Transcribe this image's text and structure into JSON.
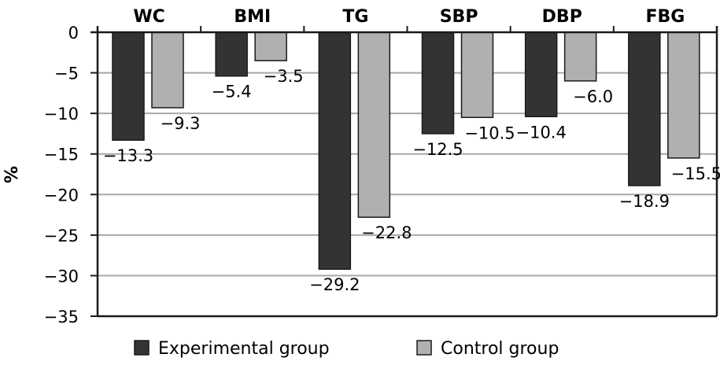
{
  "chart_data": {
    "type": "bar",
    "title": "",
    "xlabel": "",
    "ylabel": "%",
    "categories": [
      "WC",
      "BMI",
      "TG",
      "SBP",
      "DBP",
      "FBG"
    ],
    "category_axis_position": "top",
    "series": [
      {
        "name": "Experimental group",
        "color": "#333333",
        "values": [
          -13.3,
          -5.4,
          -29.2,
          -12.5,
          -10.4,
          -18.9
        ]
      },
      {
        "name": "Control group",
        "color": "#b0b0b0",
        "values": [
          -9.3,
          -3.5,
          -22.8,
          -10.5,
          -6.0,
          -15.5
        ]
      }
    ],
    "ylim": [
      -35,
      0
    ],
    "yticks": [
      0,
      -5,
      -10,
      -15,
      -20,
      -25,
      -30,
      -35
    ],
    "ytick_labels": [
      "0",
      "−5",
      "−10",
      "−15",
      "−20",
      "−25",
      "−30",
      "−35"
    ],
    "data_labels": [
      [
        "−13.3",
        "−5.4",
        "−29.2",
        "−12.5",
        "−10.4",
        "−18.9"
      ],
      [
        "−9.3",
        "−3.5",
        "−22.8",
        "−10.5",
        "−6.0",
        "−15.5"
      ]
    ],
    "grid": true,
    "legend_position": "bottom"
  }
}
